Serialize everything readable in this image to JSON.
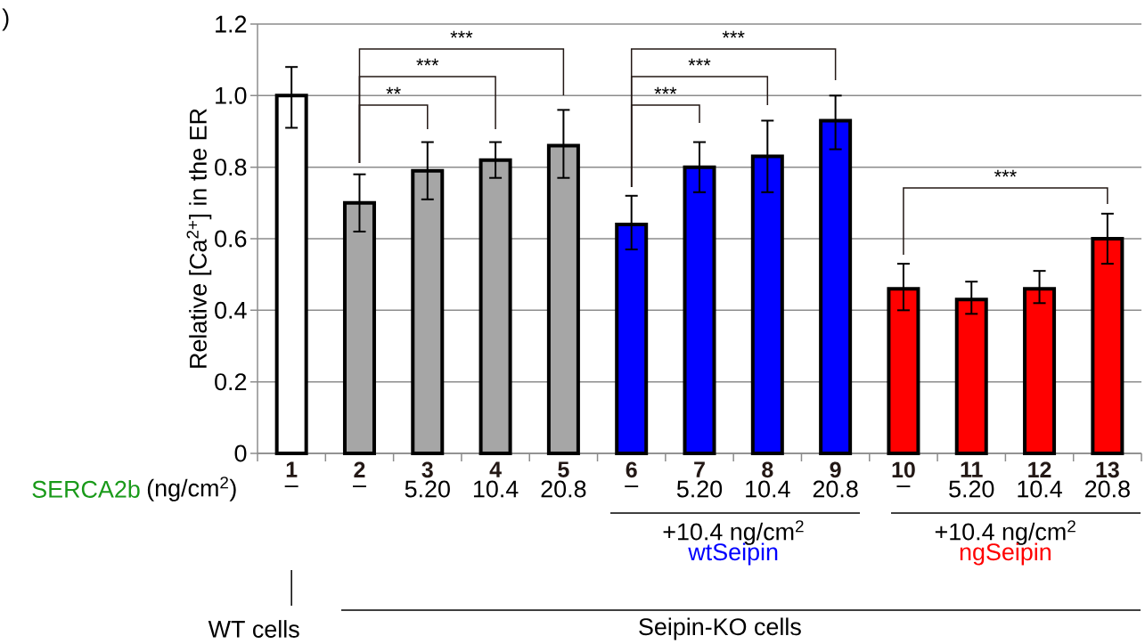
{
  "chart_data": {
    "type": "bar",
    "ylabel": "Relative [Ca$^{2+}$] in the ER",
    "categories": [
      "1",
      "2",
      "3",
      "4",
      "5",
      "6",
      "7",
      "8",
      "9",
      "10",
      "11",
      "12",
      "13"
    ],
    "values": [
      1.0,
      0.7,
      0.79,
      0.82,
      0.86,
      0.64,
      0.8,
      0.83,
      0.93,
      0.46,
      0.43,
      0.46,
      0.6
    ],
    "errors": [
      [
        0.91,
        1.08
      ],
      [
        0.62,
        0.78
      ],
      [
        0.71,
        0.87
      ],
      [
        0.77,
        0.87
      ],
      [
        0.77,
        0.96
      ],
      [
        0.57,
        0.72
      ],
      [
        0.73,
        0.87
      ],
      [
        0.73,
        0.93
      ],
      [
        0.85,
        1.0
      ],
      [
        0.4,
        0.53
      ],
      [
        0.39,
        0.48
      ],
      [
        0.42,
        0.51
      ],
      [
        0.53,
        0.67
      ]
    ],
    "colors": [
      "#ffffff",
      "#a6a6a6",
      "#a6a6a6",
      "#a6a6a6",
      "#a6a6a6",
      "#0000ff",
      "#0000ff",
      "#0000ff",
      "#0000ff",
      "#ff0000",
      "#ff0000",
      "#ff0000",
      "#ff0000"
    ],
    "ylim": [
      0,
      1.2
    ],
    "yticks": [
      0,
      0.2,
      0.4,
      0.6,
      0.8,
      {
        "value": 1,
        "label": "1.0"
      },
      1.2
    ],
    "grid": "y",
    "annotations": [
      ")",
      "SERCA2b",
      "(ng/cm$^{2}$)",
      "–",
      "–",
      "5.20",
      "10.4",
      "20.8",
      "–",
      "5.20",
      "10.4",
      "20.8",
      "–",
      "5.20",
      "10.4",
      "20.8",
      "+10.4 ng/cm$^{2}$",
      "wtSeipin",
      "+10.4 ng/cm$^{2}$",
      "ngSeipin",
      "WT cells",
      "Seipin-KO cells",
      "**",
      "***",
      "***",
      "***",
      "***",
      "***",
      "***"
    ]
  }
}
